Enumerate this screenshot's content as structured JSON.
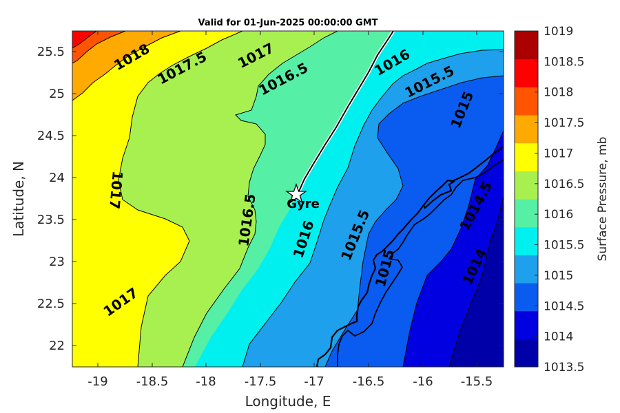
{
  "title": "Valid for 01-Jun-2025 00:00:00 GMT",
  "xlabel": "Longitude, E",
  "ylabel": "Latitude, N",
  "x_ticks": [
    "-19",
    "-18.5",
    "-18",
    "-17.5",
    "-17",
    "-16.5",
    "-16",
    "-15.5"
  ],
  "y_ticks": [
    "22",
    "22.5",
    "23",
    "23.5",
    "24",
    "24.5",
    "25",
    "25.5"
  ],
  "colorbar": {
    "label": "Surface Pressure, mb",
    "ticks": [
      "1013.5",
      "1014",
      "1014.5",
      "1015",
      "1015.5",
      "1016",
      "1016.5",
      "1017",
      "1017.5",
      "1018",
      "1018.5",
      "1019"
    ],
    "colors": [
      "#0000a8",
      "#0000e0",
      "#0a5cf0",
      "#1ea0ec",
      "#00f0f0",
      "#55f0a5",
      "#a8f050",
      "#ffff00",
      "#ffaa00",
      "#ff5500",
      "#ff0000",
      "#aa0000"
    ]
  },
  "contour_labels": [
    {
      "text": "1018"
    },
    {
      "text": "1017.5"
    },
    {
      "text": "1017"
    },
    {
      "text": "1016.5"
    },
    {
      "text": "1016"
    },
    {
      "text": "1015.5"
    },
    {
      "text": "1015"
    },
    {
      "text": "1017"
    },
    {
      "text": "1016.5"
    },
    {
      "text": "1016"
    },
    {
      "text": "1015.5"
    },
    {
      "text": "1015"
    },
    {
      "text": "1014.5"
    },
    {
      "text": "1014"
    },
    {
      "text": "1017"
    }
  ],
  "site": {
    "name": "Gyre",
    "lon": -17.2,
    "lat": 23.8
  },
  "chart_data": {
    "type": "heatmap",
    "title": "Valid for 01-Jun-2025 00:00:00 GMT",
    "xlabel": "Longitude, E",
    "ylabel": "Latitude, N",
    "xlim": [
      -19.3,
      -15.25
    ],
    "ylim": [
      21.75,
      25.75
    ],
    "colorbar_label": "Surface Pressure, mb",
    "value_range": [
      1013.5,
      1019
    ],
    "contour_interval": 0.5,
    "marker": {
      "label": "Gyre",
      "lon": -17.2,
      "lat": 23.8
    },
    "grid": false
  }
}
